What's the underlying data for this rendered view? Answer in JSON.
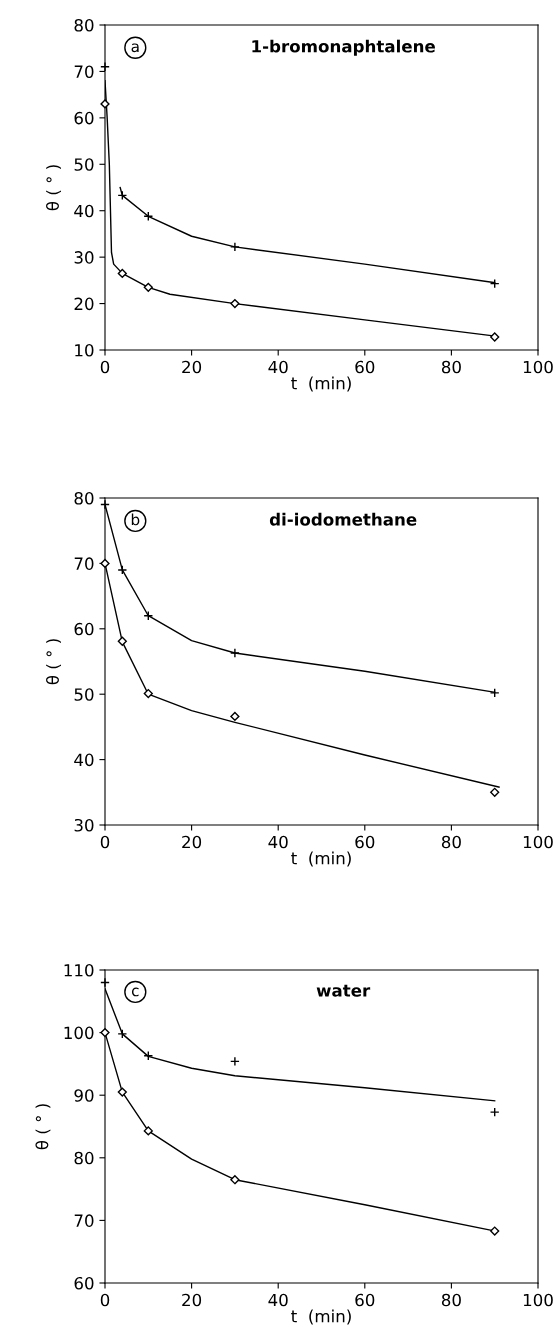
{
  "chart_data": [
    {
      "type": "scatter",
      "title": "1-bromonaphtalene",
      "annotations": [
        "a"
      ],
      "xlabel": "t  (min)",
      "ylabel": "θ ( ° )",
      "xlim": [
        0,
        100
      ],
      "ylim": [
        10,
        80
      ],
      "xticks": [
        0,
        20,
        40,
        60,
        80,
        100
      ],
      "yticks": [
        10,
        20,
        30,
        40,
        50,
        60,
        70,
        80
      ],
      "grid": false,
      "legend": false,
      "series": [
        {
          "marker": "cross",
          "color": "#000000",
          "x": [
            0,
            4,
            10,
            30,
            90
          ],
          "values": [
            71,
            43.3,
            38.8,
            32.2,
            24.3
          ]
        },
        {
          "marker": "diamond",
          "color": "#000000",
          "x": [
            0,
            4,
            10,
            30,
            90
          ],
          "values": [
            63,
            26.5,
            23.5,
            20,
            12.8
          ]
        },
        {
          "type": "line",
          "marker": "none",
          "line_style": "solid",
          "color": "#000000",
          "x": [
            3.5,
            4,
            10,
            20,
            30,
            60,
            90
          ],
          "values": [
            45,
            43.3,
            38.8,
            34.5,
            32.2,
            28.5,
            24.5
          ]
        },
        {
          "type": "line",
          "marker": "none",
          "line_style": "solid",
          "color": "#000000",
          "x": [
            0,
            0.5,
            1,
            1.5,
            2,
            4,
            10,
            15,
            30,
            60,
            90
          ],
          "values": [
            68,
            60,
            50,
            31,
            28.5,
            26.5,
            23.5,
            22,
            20,
            16.5,
            13
          ]
        }
      ]
    },
    {
      "type": "scatter",
      "title": "di-iodomethane",
      "annotations": [
        "b"
      ],
      "xlabel": "t  (min)",
      "ylabel": "θ ( ° )",
      "xlim": [
        0,
        100
      ],
      "ylim": [
        30,
        80
      ],
      "xticks": [
        0,
        20,
        40,
        60,
        80,
        100
      ],
      "yticks": [
        30,
        40,
        50,
        60,
        70,
        80
      ],
      "grid": false,
      "legend": false,
      "series": [
        {
          "marker": "cross",
          "color": "#000000",
          "x": [
            0,
            4,
            10,
            30,
            90
          ],
          "values": [
            79,
            69,
            62,
            56.3,
            50.2
          ]
        },
        {
          "marker": "diamond",
          "color": "#000000",
          "x": [
            0,
            4,
            10,
            30,
            90
          ],
          "values": [
            70,
            58.1,
            50.1,
            46.6,
            35
          ]
        },
        {
          "type": "line",
          "marker": "none",
          "line_style": "solid",
          "color": "#000000",
          "x": [
            0,
            4,
            10,
            20,
            30,
            60,
            90
          ],
          "values": [
            79,
            69,
            62,
            58.2,
            56.3,
            53.5,
            50.3
          ]
        },
        {
          "type": "line",
          "marker": "none",
          "line_style": "solid",
          "color": "#000000",
          "x": [
            0,
            4,
            10,
            20,
            30,
            60,
            91
          ],
          "values": [
            70,
            58,
            50,
            47.5,
            45.7,
            40.7,
            35.8
          ]
        }
      ]
    },
    {
      "type": "scatter",
      "title": "water",
      "annotations": [
        "c"
      ],
      "xlabel": "t  (min)",
      "ylabel": "θ ( ° )",
      "xlim": [
        0,
        100
      ],
      "ylim": [
        60,
        110
      ],
      "xticks": [
        0,
        20,
        40,
        60,
        80,
        100
      ],
      "yticks": [
        60,
        70,
        80,
        90,
        100,
        110
      ],
      "grid": false,
      "legend": false,
      "series": [
        {
          "marker": "cross",
          "color": "#000000",
          "x": [
            0,
            4,
            10,
            30,
            90
          ],
          "values": [
            108,
            99.8,
            96.3,
            95.4,
            87.3
          ]
        },
        {
          "marker": "diamond",
          "color": "#000000",
          "x": [
            0,
            4,
            10,
            30,
            90
          ],
          "values": [
            100,
            90.5,
            84.3,
            76.5,
            68.3
          ]
        },
        {
          "type": "line",
          "marker": "none",
          "line_style": "solid",
          "color": "#000000",
          "x": [
            0,
            4,
            10,
            20,
            30,
            60,
            90
          ],
          "values": [
            107,
            99.8,
            96.2,
            94.3,
            93.1,
            91.2,
            89.1
          ]
        },
        {
          "type": "line",
          "marker": "none",
          "line_style": "solid",
          "color": "#000000",
          "x": [
            0,
            4,
            10,
            20,
            30,
            60,
            90
          ],
          "values": [
            100,
            90.5,
            84.3,
            79.8,
            76.5,
            72.5,
            68.3
          ]
        }
      ]
    }
  ]
}
